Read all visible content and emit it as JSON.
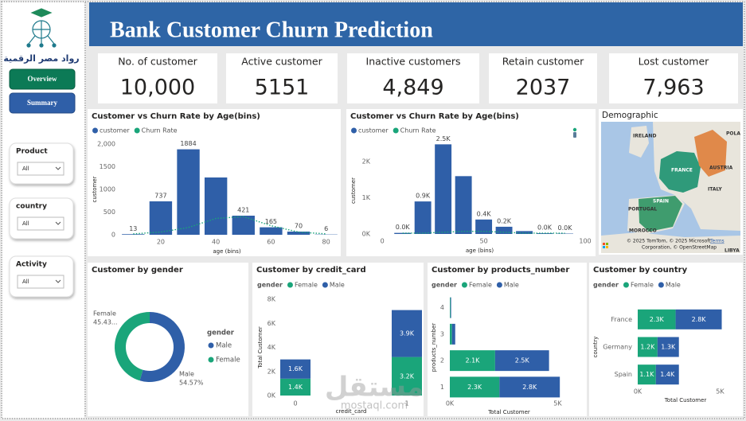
{
  "sidebar": {
    "logo_text": "رواد مصر الرقمية",
    "buttons": [
      "Overview",
      "Summary"
    ],
    "filters": [
      {
        "label": "Product",
        "value": "All"
      },
      {
        "label": "country",
        "value": "All"
      },
      {
        "label": "Activity",
        "value": "All"
      }
    ]
  },
  "header": {
    "title": "Bank Customer Churn Prediction"
  },
  "kpis": [
    {
      "label": "No. of customer",
      "value": "10,000"
    },
    {
      "label": "Active customer",
      "value": "5151"
    },
    {
      "label": "Inactive customers",
      "value": "4,849"
    },
    {
      "label": "Retain customer",
      "value": "2037"
    },
    {
      "label": "Lost customer",
      "value": "7,963"
    }
  ],
  "map": {
    "title": "Demographic",
    "labels": [
      "IRELAND",
      "POLA",
      "FRANCE",
      "AUSTRIA",
      "ITALY",
      "SPAIN",
      "PORTUGAL",
      "MOROCCO",
      "LIBYA"
    ],
    "attribution": [
      "© 2025 TomTom, © 2025 Microsoft",
      "Corporation, © OpenStreetMap",
      "Terms"
    ]
  },
  "watermark": [
    "مستقل",
    "mostaql.com"
  ],
  "chart_data": [
    {
      "type": "bar",
      "title": "Customer vs Churn Rate by Age(bins)",
      "x": [
        10,
        20,
        30,
        40,
        50,
        60,
        70,
        80
      ],
      "series": [
        {
          "name": "customer",
          "color": "#2f5fa8",
          "values": [
            13,
            737,
            1884,
            1263,
            421,
            165,
            70,
            6
          ],
          "value_labels": [
            "13",
            "737",
            "1884",
            null,
            "421",
            "165",
            "70",
            "6"
          ]
        },
        {
          "name": "Churn Rate",
          "color": "#1aa57a",
          "type": "line",
          "axis": "y2",
          "values": [
            0.01,
            0.03,
            0.08,
            0.18,
            0.2,
            0.1,
            0.03,
            0.01
          ]
        }
      ],
      "xlim": [
        5,
        83
      ],
      "xticks": [
        20,
        40,
        60,
        80
      ],
      "ylim": [
        0,
        2000
      ],
      "yticks": [
        0,
        500,
        1000,
        1500,
        {
          "value": 2000,
          "label": "2,000"
        }
      ],
      "y2lim": [
        0,
        1
      ],
      "xlabel": "age (bins)",
      "ylabel": "customer"
    },
    {
      "type": "bar",
      "title": "Customer vs Churn Rate by Age(bins)",
      "x": [
        10,
        20,
        30,
        40,
        50,
        60,
        70,
        80,
        90
      ],
      "series": [
        {
          "name": "customer",
          "color": "#2f5fa8",
          "values": [
            30,
            900,
            2480,
            1600,
            400,
            200,
            80,
            20,
            10
          ],
          "value_labels": [
            "0.0K",
            "0.9K",
            "2.5K",
            null,
            "0.4K",
            "0.2K",
            null,
            "0.0K",
            "0.0K"
          ]
        },
        {
          "name": "Churn Rate",
          "color": "#1aa57a",
          "type": "line",
          "axis": "y2",
          "values": [
            0.01,
            0.01,
            0.02,
            0.03,
            0.03,
            0.02,
            0.01,
            0.01,
            0.01
          ]
        }
      ],
      "xlim": [
        -4,
        100
      ],
      "xticks": [
        0,
        50,
        100
      ],
      "ylim": [
        0,
        2400
      ],
      "yticks": [
        {
          "value": 0,
          "label": "0K"
        },
        {
          "value": 1000,
          "label": "1K"
        },
        {
          "value": 2000,
          "label": "2K"
        }
      ],
      "y2lim": [
        0,
        1
      ],
      "xlabel": "age (bins)",
      "ylabel": "customer"
    },
    {
      "type": "pie",
      "title": "Customer by gender",
      "legend_title": "gender",
      "categories": [
        "Male",
        "Female"
      ],
      "values": [
        54.57,
        45.43
      ],
      "value_labels": [
        "54.57%",
        "45.43..."
      ],
      "colors": [
        "#2f5fa8",
        "#1aa57a"
      ]
    },
    {
      "type": "stacked_bar",
      "title": "Customer by credit_card",
      "legend_title": "gender",
      "categories": [
        "0",
        "1"
      ],
      "series": [
        {
          "name": "Female",
          "color": "#1aa57a",
          "values": [
            1400,
            3200
          ],
          "value_labels": [
            "1.4K",
            "3.2K"
          ]
        },
        {
          "name": "Male",
          "color": "#2f5fa8",
          "values": [
            1600,
            3900
          ],
          "value_labels": [
            "1.6K",
            "3.9K"
          ]
        }
      ],
      "ylim": [
        0,
        8000
      ],
      "yticks": [
        {
          "value": 0,
          "label": "0K"
        },
        {
          "value": 2000,
          "label": "2K"
        },
        {
          "value": 4000,
          "label": "4K"
        },
        {
          "value": 6000,
          "label": "6K"
        },
        {
          "value": 8000,
          "label": "8K"
        }
      ],
      "xlabel": "credit_card",
      "ylabel": "Total Customer"
    },
    {
      "type": "stacked_barh",
      "title": "Customer by products_number",
      "legend_title": "gender",
      "categories": [
        "1",
        "2",
        "3",
        "4"
      ],
      "series": [
        {
          "name": "Female",
          "color": "#1aa57a",
          "values": [
            2300,
            2100,
            100,
            30
          ],
          "value_labels": [
            "2.3K",
            "2.1K",
            null,
            null
          ]
        },
        {
          "name": "Male",
          "color": "#2f5fa8",
          "values": [
            2800,
            2500,
            150,
            30
          ],
          "value_labels": [
            "2.8K",
            "2.5K",
            null,
            null
          ]
        }
      ],
      "xlim": [
        0,
        5500
      ],
      "xticks": [
        {
          "value": 0,
          "label": "0K"
        },
        {
          "value": 5000,
          "label": "5K"
        }
      ],
      "xlabel": "Total Customer",
      "ylabel": "products_number"
    },
    {
      "type": "stacked_barh",
      "title": "Customer by country",
      "legend_title": "gender",
      "categories": [
        "France",
        "Germany",
        "Spain"
      ],
      "series": [
        {
          "name": "Female",
          "color": "#1aa57a",
          "values": [
            2300,
            1200,
            1100
          ],
          "value_labels": [
            "2.3K",
            "1.2K",
            "1.1K"
          ]
        },
        {
          "name": "Male",
          "color": "#2f5fa8",
          "values": [
            2800,
            1300,
            1400
          ],
          "value_labels": [
            "2.8K",
            "1.3K",
            "1.4K"
          ]
        }
      ],
      "xlim": [
        0,
        5800
      ],
      "xticks": [
        {
          "value": 0,
          "label": "0K"
        },
        {
          "value": 5000,
          "label": "5K"
        }
      ],
      "xlabel": "Total Customer",
      "ylabel": "country"
    }
  ]
}
